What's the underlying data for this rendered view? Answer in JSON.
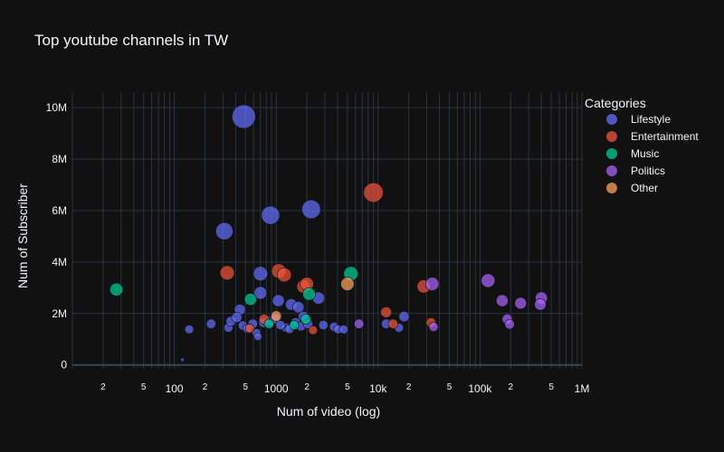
{
  "chart_data": {
    "type": "scatter",
    "title": "Top youtube channels in TW",
    "xlabel": "Num of video (log)",
    "ylabel": "Num of Subscriber",
    "x_scale": "log",
    "xlim": [
      10,
      1000000
    ],
    "ylim": [
      -150000,
      10600000
    ],
    "grid": true,
    "legend": {
      "title": "Categories",
      "placement": "top-right outside"
    },
    "x_major_ticks": [
      {
        "value": 100,
        "label": "100"
      },
      {
        "value": 1000,
        "label": "1000"
      },
      {
        "value": 10000,
        "label": "10k"
      },
      {
        "value": 100000,
        "label": "100k"
      },
      {
        "value": 1000000,
        "label": "1M"
      }
    ],
    "x_minor_ticks": [
      {
        "value": 20,
        "label": "2"
      },
      {
        "value": 50,
        "label": "5"
      },
      {
        "value": 200,
        "label": "2"
      },
      {
        "value": 500,
        "label": "5"
      },
      {
        "value": 2000,
        "label": "2"
      },
      {
        "value": 5000,
        "label": "5"
      },
      {
        "value": 20000,
        "label": "2"
      },
      {
        "value": 50000,
        "label": "5"
      },
      {
        "value": 200000,
        "label": "2"
      },
      {
        "value": 500000,
        "label": "5"
      }
    ],
    "y_ticks": [
      {
        "value": 0,
        "label": "0"
      },
      {
        "value": 2000000,
        "label": "2M"
      },
      {
        "value": 4000000,
        "label": "4M"
      },
      {
        "value": 6000000,
        "label": "6M"
      },
      {
        "value": 8000000,
        "label": "8M"
      },
      {
        "value": 10000000,
        "label": "10M"
      }
    ],
    "series": [
      {
        "name": "Lifestyle",
        "color": "#636efa",
        "points": [
          [
            480,
            9650000,
            9650000
          ],
          [
            2200,
            6050000,
            6050000
          ],
          [
            880,
            5820000,
            5820000
          ],
          [
            310,
            5200000,
            5200000
          ],
          [
            1850,
            1880000,
            1880000
          ],
          [
            440,
            2150000,
            2150000
          ],
          [
            700,
            3550000,
            3550000
          ],
          [
            1050,
            2500000,
            2500000
          ],
          [
            1400,
            2350000,
            2350000
          ],
          [
            1650,
            2250000,
            2250000
          ],
          [
            2600,
            2600000,
            2600000
          ],
          [
            700,
            2800000,
            2800000
          ],
          [
            340,
            1450000,
            1450000
          ],
          [
            590,
            1600000,
            1600000
          ],
          [
            640,
            1250000,
            1250000
          ],
          [
            660,
            1100000,
            1100000
          ],
          [
            1250,
            1450000,
            1450000
          ],
          [
            2900,
            1550000,
            1550000
          ],
          [
            3700,
            1480000,
            1480000
          ],
          [
            4050,
            1380000,
            1380000
          ],
          [
            4600,
            1380000,
            1380000
          ],
          [
            12000,
            1600000,
            1600000
          ],
          [
            16000,
            1450000,
            1450000
          ],
          [
            18000,
            1880000,
            1880000
          ],
          [
            230,
            1600000,
            1600000
          ],
          [
            140,
            1380000,
            1380000
          ],
          [
            360,
            1700000,
            1700000
          ],
          [
            410,
            1850000,
            1850000
          ],
          [
            470,
            1530000,
            1530000
          ],
          [
            520,
            1420000,
            1420000
          ],
          [
            750,
            1650000,
            1650000
          ],
          [
            880,
            1700000,
            1700000
          ],
          [
            980,
            1800000,
            1800000
          ],
          [
            1100,
            1550000,
            1550000
          ],
          [
            1350,
            1400000,
            1400000
          ],
          [
            1550,
            1650000,
            1650000
          ],
          [
            1750,
            1500000,
            1500000
          ],
          [
            2050,
            1600000,
            1600000
          ],
          [
            120,
            200000,
            200000
          ]
        ]
      },
      {
        "name": "Entertainment",
        "color": "#ef553b",
        "points": [
          [
            9000,
            6700000,
            6700000
          ],
          [
            330,
            3580000,
            3580000
          ],
          [
            1060,
            3650000,
            3650000
          ],
          [
            1200,
            3500000,
            3500000
          ],
          [
            1850,
            3050000,
            3050000
          ],
          [
            2000,
            3150000,
            3150000
          ],
          [
            28000,
            3050000,
            3050000
          ],
          [
            33000,
            1650000,
            1650000
          ],
          [
            12000,
            2050000,
            2050000
          ],
          [
            14000,
            1600000,
            1600000
          ],
          [
            2300,
            1350000,
            1350000
          ],
          [
            550,
            1420000,
            1420000
          ],
          [
            760,
            1780000,
            1780000
          ]
        ]
      },
      {
        "name": "Music",
        "color": "#00cc96",
        "points": [
          [
            27,
            2930000,
            2930000
          ],
          [
            5400,
            3550000,
            3550000
          ],
          [
            2100,
            2760000,
            2760000
          ],
          [
            1950,
            1780000,
            1780000
          ],
          [
            1500,
            1550000,
            1550000
          ],
          [
            850,
            1600000,
            1600000
          ],
          [
            560,
            2550000,
            2550000
          ]
        ]
      },
      {
        "name": "Politics",
        "color": "#ab63fa",
        "points": [
          [
            34000,
            3150000,
            3150000
          ],
          [
            120000,
            3280000,
            3280000
          ],
          [
            165000,
            2500000,
            2500000
          ],
          [
            250000,
            2400000,
            2400000
          ],
          [
            400000,
            2600000,
            2600000
          ],
          [
            390000,
            2350000,
            2350000
          ],
          [
            185000,
            1780000,
            1780000
          ],
          [
            195000,
            1580000,
            1580000
          ],
          [
            35000,
            1480000,
            1480000
          ],
          [
            6500,
            1600000,
            1600000
          ]
        ]
      },
      {
        "name": "Other",
        "color": "#ffa15a",
        "points": [
          [
            5000,
            3150000,
            3150000
          ],
          [
            1000,
            1900000,
            1900000
          ]
        ]
      }
    ]
  }
}
